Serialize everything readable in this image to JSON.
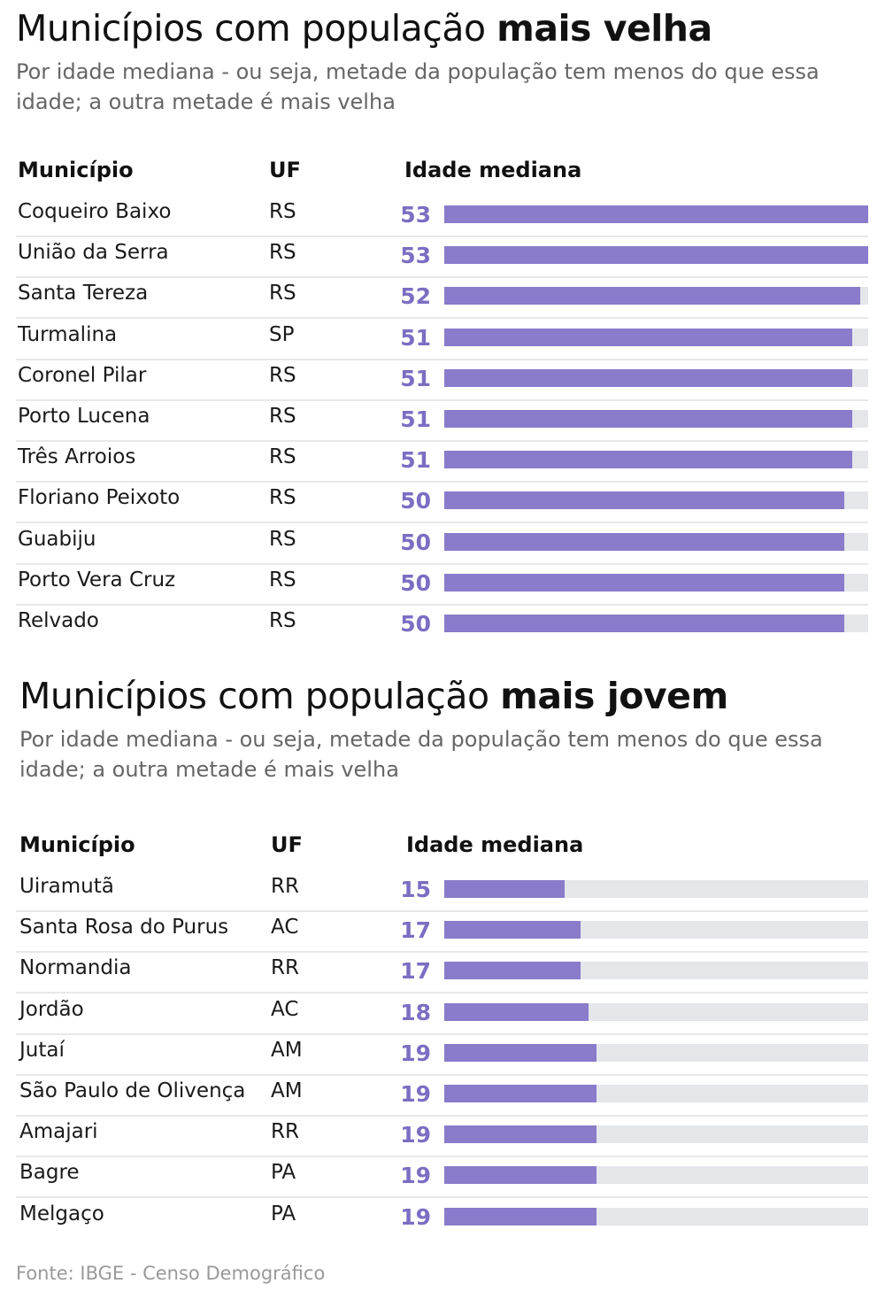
{
  "sections": [
    {
      "title_prefix": "Municípios com população ",
      "title_bold": "mais velha",
      "subtitle": "Por idade mediana - ou seja, metade da população tem menos do que essa idade; a outra metade é mais velha",
      "headers": {
        "municipio": "Município",
        "uf": "UF",
        "idade": "Idade mediana"
      },
      "rows": [
        {
          "municipio": "Coqueiro Baixo",
          "uf": "RS",
          "idade": 53
        },
        {
          "municipio": "União da Serra",
          "uf": "RS",
          "idade": 53
        },
        {
          "municipio": "Santa Tereza",
          "uf": "RS",
          "idade": 52
        },
        {
          "municipio": "Turmalina",
          "uf": "SP",
          "idade": 51
        },
        {
          "municipio": "Coronel Pilar",
          "uf": "RS",
          "idade": 51
        },
        {
          "municipio": "Porto Lucena",
          "uf": "RS",
          "idade": 51
        },
        {
          "municipio": "Três Arroios",
          "uf": "RS",
          "idade": 51
        },
        {
          "municipio": "Floriano Peixoto",
          "uf": "RS",
          "idade": 50
        },
        {
          "municipio": "Guabiju",
          "uf": "RS",
          "idade": 50
        },
        {
          "municipio": "Porto Vera Cruz",
          "uf": "RS",
          "idade": 50
        },
        {
          "municipio": "Relvado",
          "uf": "RS",
          "idade": 50
        }
      ]
    },
    {
      "title_prefix": "Municípios com população ",
      "title_bold": "mais jovem",
      "subtitle": "Por idade mediana - ou seja, metade da população tem menos do que essa idade; a outra metade é mais velha",
      "headers": {
        "municipio": "Município",
        "uf": "UF",
        "idade": "Idade mediana"
      },
      "rows": [
        {
          "municipio": "Uiramutã",
          "uf": "RR",
          "idade": 15
        },
        {
          "municipio": "Santa Rosa do Purus",
          "uf": "AC",
          "idade": 17
        },
        {
          "municipio": "Normandia",
          "uf": "RR",
          "idade": 17
        },
        {
          "municipio": "Jordão",
          "uf": "AC",
          "idade": 18
        },
        {
          "municipio": "Jutaí",
          "uf": "AM",
          "idade": 19
        },
        {
          "municipio": "São Paulo de Olivença",
          "uf": "AM",
          "idade": 19
        },
        {
          "municipio": "Amajari",
          "uf": "RR",
          "idade": 19
        },
        {
          "municipio": "Bagre",
          "uf": "PA",
          "idade": 19
        },
        {
          "municipio": "Melgaço",
          "uf": "PA",
          "idade": 19
        }
      ]
    }
  ],
  "chart_data": [
    {
      "type": "bar",
      "orientation": "horizontal",
      "xlim": [
        0,
        53
      ],
      "categories": [
        "Coqueiro Baixo",
        "União da Serra",
        "Santa Tereza",
        "Turmalina",
        "Coronel Pilar",
        "Porto Lucena",
        "Três Arroios",
        "Floriano Peixoto",
        "Guabiju",
        "Porto Vera Cruz",
        "Relvado"
      ],
      "values": [
        53,
        53,
        52,
        51,
        51,
        51,
        51,
        50,
        50,
        50,
        50
      ]
    },
    {
      "type": "bar",
      "orientation": "horizontal",
      "xlim": [
        0,
        53
      ],
      "categories": [
        "Uiramutã",
        "Santa Rosa do Purus",
        "Normandia",
        "Jordão",
        "Jutaí",
        "São Paulo de Olivença",
        "Amajari",
        "Bagre",
        "Melgaço"
      ],
      "values": [
        15,
        17,
        17,
        18,
        19,
        19,
        19,
        19,
        19
      ]
    }
  ],
  "colors": {
    "bar": "#8a7bcb",
    "value": "#7b6ec3",
    "track": "#e4e6ea"
  },
  "source": "Fonte: IBGE - Censo Demográfico"
}
